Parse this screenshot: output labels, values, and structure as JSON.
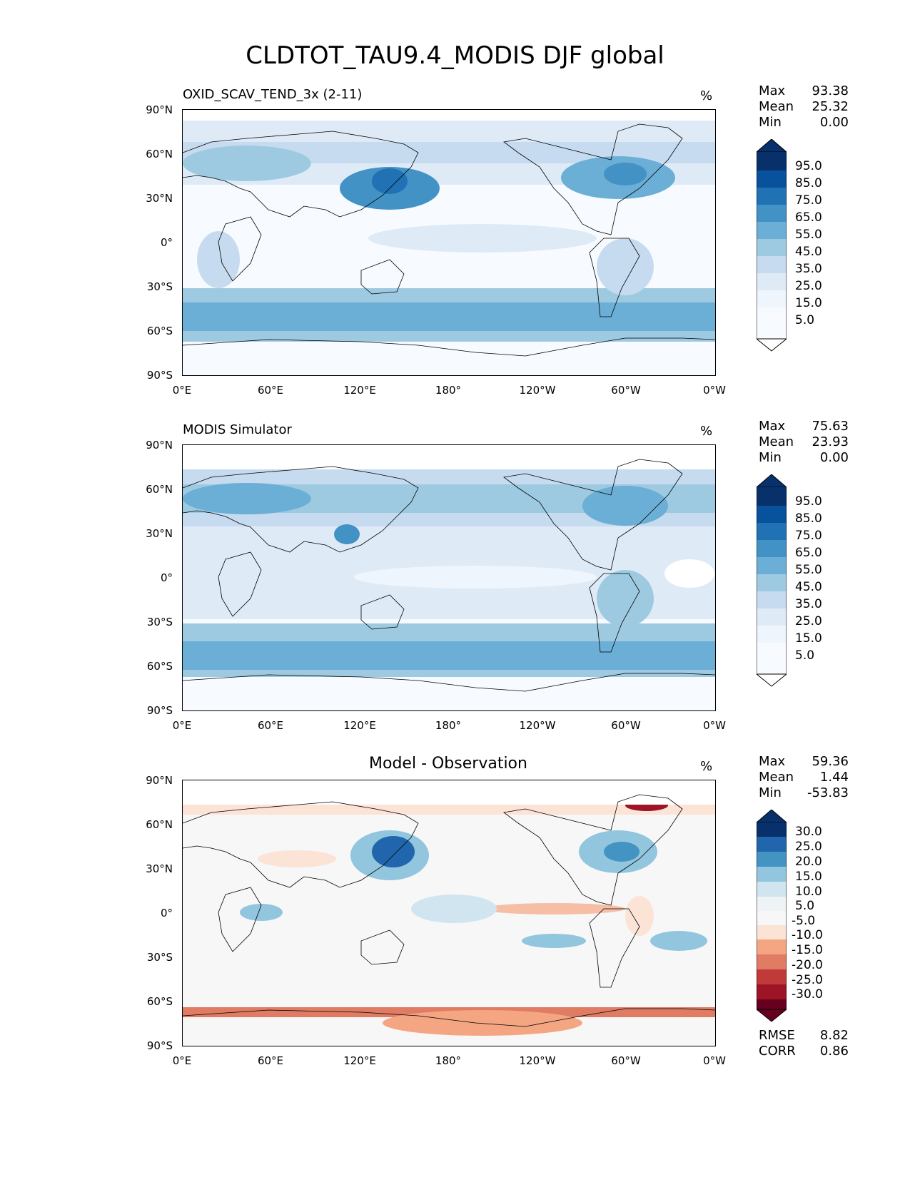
{
  "figure": {
    "title": "CLDTOT_TAU9.4_MODIS DJF global"
  },
  "panels": [
    {
      "id": "model",
      "title": "OXID_SCAV_TEND_3x (2-11)",
      "unit": "%",
      "stats": [
        {
          "label": "Max",
          "value": "93.38"
        },
        {
          "label": "Mean",
          "value": "25.32"
        },
        {
          "label": "Min",
          "value": "0.00"
        }
      ],
      "colorbar": {
        "labels": [
          "95.0",
          "85.0",
          "75.0",
          "65.0",
          "55.0",
          "45.0",
          "35.0",
          "25.0",
          "15.0",
          "5.0"
        ],
        "colors": [
          "#08306b",
          "#08519c",
          "#2171b5",
          "#4292c6",
          "#6baed6",
          "#9ecae1",
          "#c6dbef",
          "#deebf7",
          "#eef5fc",
          "#f7fbff"
        ]
      }
    },
    {
      "id": "obs",
      "title": "MODIS Simulator",
      "unit": "%",
      "stats": [
        {
          "label": "Max",
          "value": "75.63"
        },
        {
          "label": "Mean",
          "value": "23.93"
        },
        {
          "label": "Min",
          "value": "0.00"
        }
      ],
      "colorbar": {
        "labels": [
          "95.0",
          "85.0",
          "75.0",
          "65.0",
          "55.0",
          "45.0",
          "35.0",
          "25.0",
          "15.0",
          "5.0"
        ],
        "colors": [
          "#08306b",
          "#08519c",
          "#2171b5",
          "#4292c6",
          "#6baed6",
          "#9ecae1",
          "#c6dbef",
          "#deebf7",
          "#eef5fc",
          "#f7fbff"
        ]
      }
    },
    {
      "id": "diff",
      "title": "Model - Observation",
      "unit": "%",
      "stats": [
        {
          "label": "Max",
          "value": "59.36"
        },
        {
          "label": "Mean",
          "value": "1.44"
        },
        {
          "label": "Min",
          "value": "-53.83"
        }
      ],
      "colorbar": {
        "labels": [
          "30.0",
          "25.0",
          "20.0",
          "15.0",
          "10.0",
          "5.0",
          "-5.0",
          "-10.0",
          "-15.0",
          "-20.0",
          "-25.0",
          "-30.0"
        ],
        "colors": [
          "#08306b",
          "#2166ac",
          "#4393c3",
          "#92c5de",
          "#d1e5f0",
          "#eef3f6",
          "#f7f7f7",
          "#fbe3d6",
          "#f4a582",
          "#e07b64",
          "#c13a3a",
          "#9e1427",
          "#67001f"
        ]
      },
      "metrics": [
        {
          "label": "RMSE",
          "value": "8.82"
        },
        {
          "label": "CORR",
          "value": "0.86"
        }
      ]
    }
  ],
  "axes": {
    "lat_ticks": [
      "90°N",
      "60°N",
      "30°N",
      "0°",
      "30°S",
      "60°S",
      "90°S"
    ],
    "lon_ticks": [
      "0°E",
      "60°E",
      "120°E",
      "180°",
      "120°W",
      "60°W",
      "0°W"
    ]
  },
  "colors": {
    "land_outline": "#000000",
    "blue_dark": "#08519c",
    "blue_mid": "#6baed6",
    "blue_light": "#deebf7",
    "red_dark": "#9e1427",
    "red_light": "#fbe3d6",
    "neutral": "#f7f7f7"
  }
}
